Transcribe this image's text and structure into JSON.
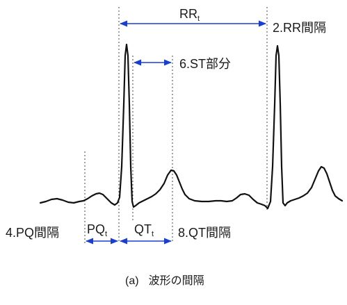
{
  "diagram": {
    "waveform": "ecg-trace",
    "colors": {
      "trace": "#111111",
      "guide": "#444444",
      "arrow": "#1a3fd0",
      "text": "#1a1a1a"
    },
    "labels": {
      "rr_main": "RR",
      "rr_sub": "t",
      "rr_interval": "2.RR間隔",
      "st_segment": "6.ST部分",
      "pq_interval": "4.PQ間隔",
      "pq_main": "PQ",
      "pq_sub": "t",
      "qt_main": "QT",
      "qt_sub": "t",
      "qt_interval": "8.QT間隔"
    },
    "caption": {
      "marker": "(a)",
      "text": "波形の間隔"
    }
  }
}
